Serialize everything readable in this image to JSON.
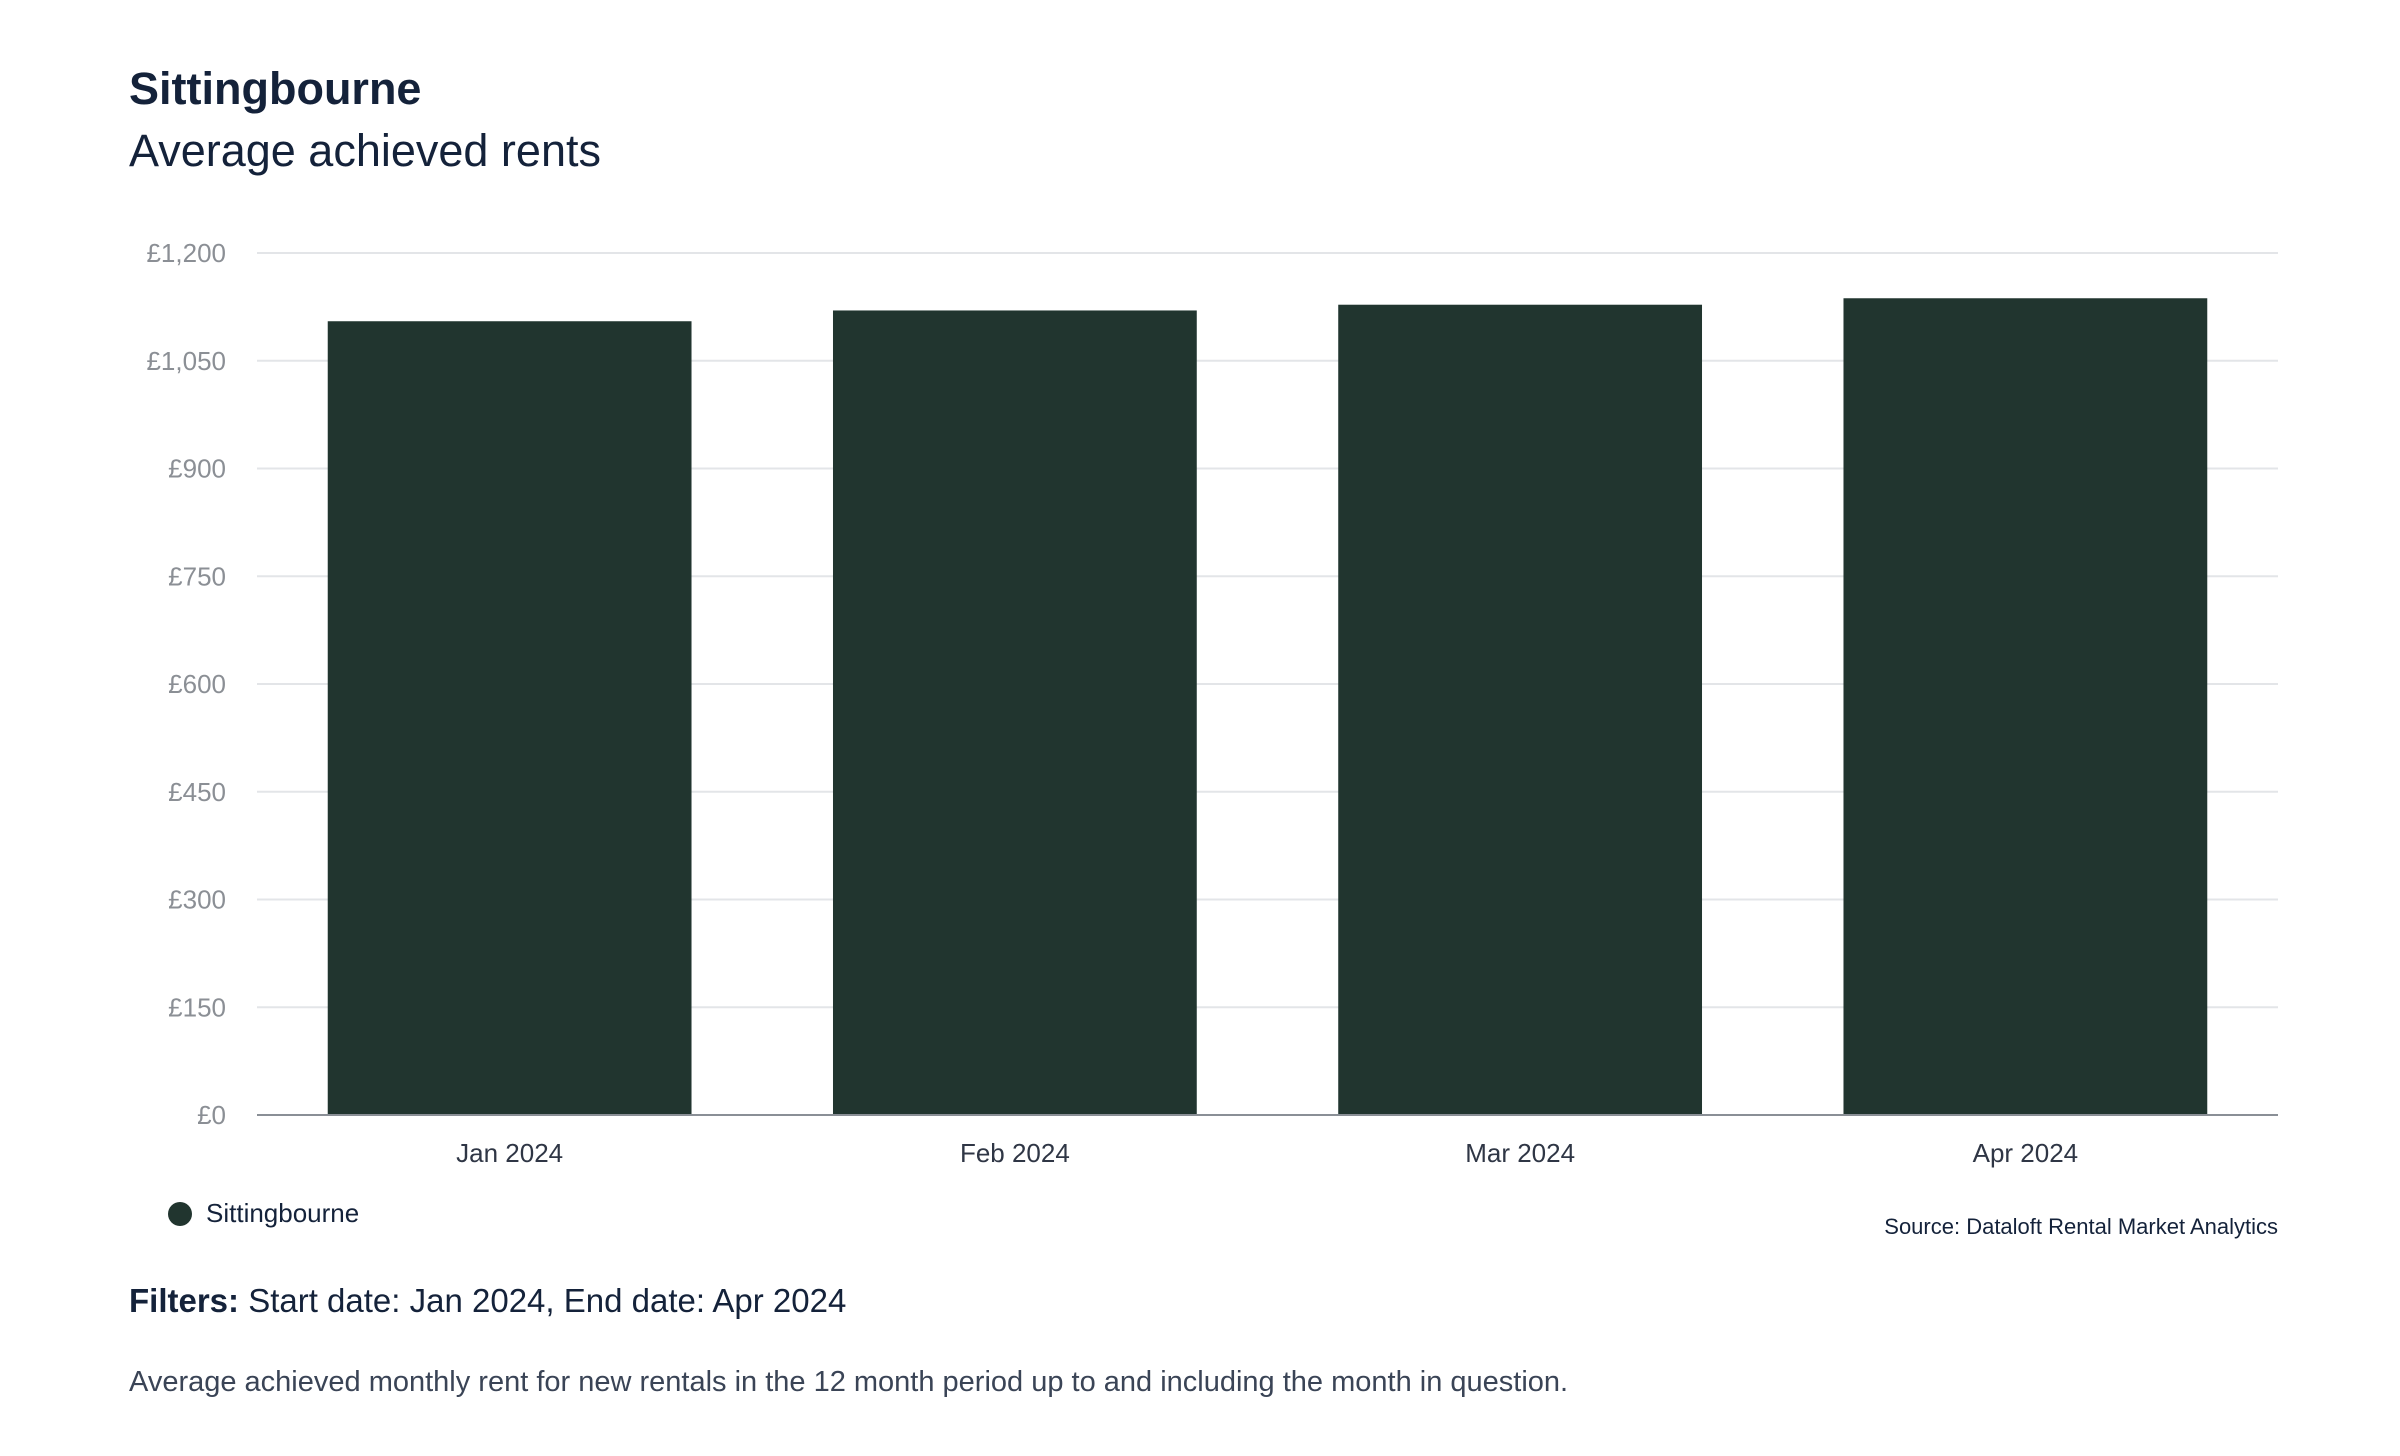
{
  "header": {
    "title": "Sittingbourne",
    "subtitle": "Average achieved rents"
  },
  "colors": {
    "bar": "#21352f",
    "grid": "#e3e5e8",
    "axis": "#8a8f96",
    "tick_text": "#8b8f95",
    "category_text": "#2f3645"
  },
  "chart_data": {
    "type": "bar",
    "categories": [
      "Jan 2024",
      "Feb 2024",
      "Mar 2024",
      "Apr 2024"
    ],
    "series": [
      {
        "name": "Sittingbourne",
        "values": [
          1105,
          1120,
          1128,
          1137
        ]
      }
    ],
    "yticks": [
      "£0",
      "£150",
      "£300",
      "£450",
      "£600",
      "£750",
      "£900",
      "£1,050",
      "£1,200"
    ],
    "ylim": [
      0,
      1200
    ],
    "grid": true,
    "legend_position": "bottom-left"
  },
  "legend": {
    "label": "Sittingbourne"
  },
  "source": "Source: Dataloft Rental Market Analytics",
  "filters": {
    "label": "Filters:",
    "text": " Start date: Jan 2024, End date: Apr 2024"
  },
  "footnote": "Average achieved monthly rent for new rentals in the 12 month period up to and including the month in question."
}
